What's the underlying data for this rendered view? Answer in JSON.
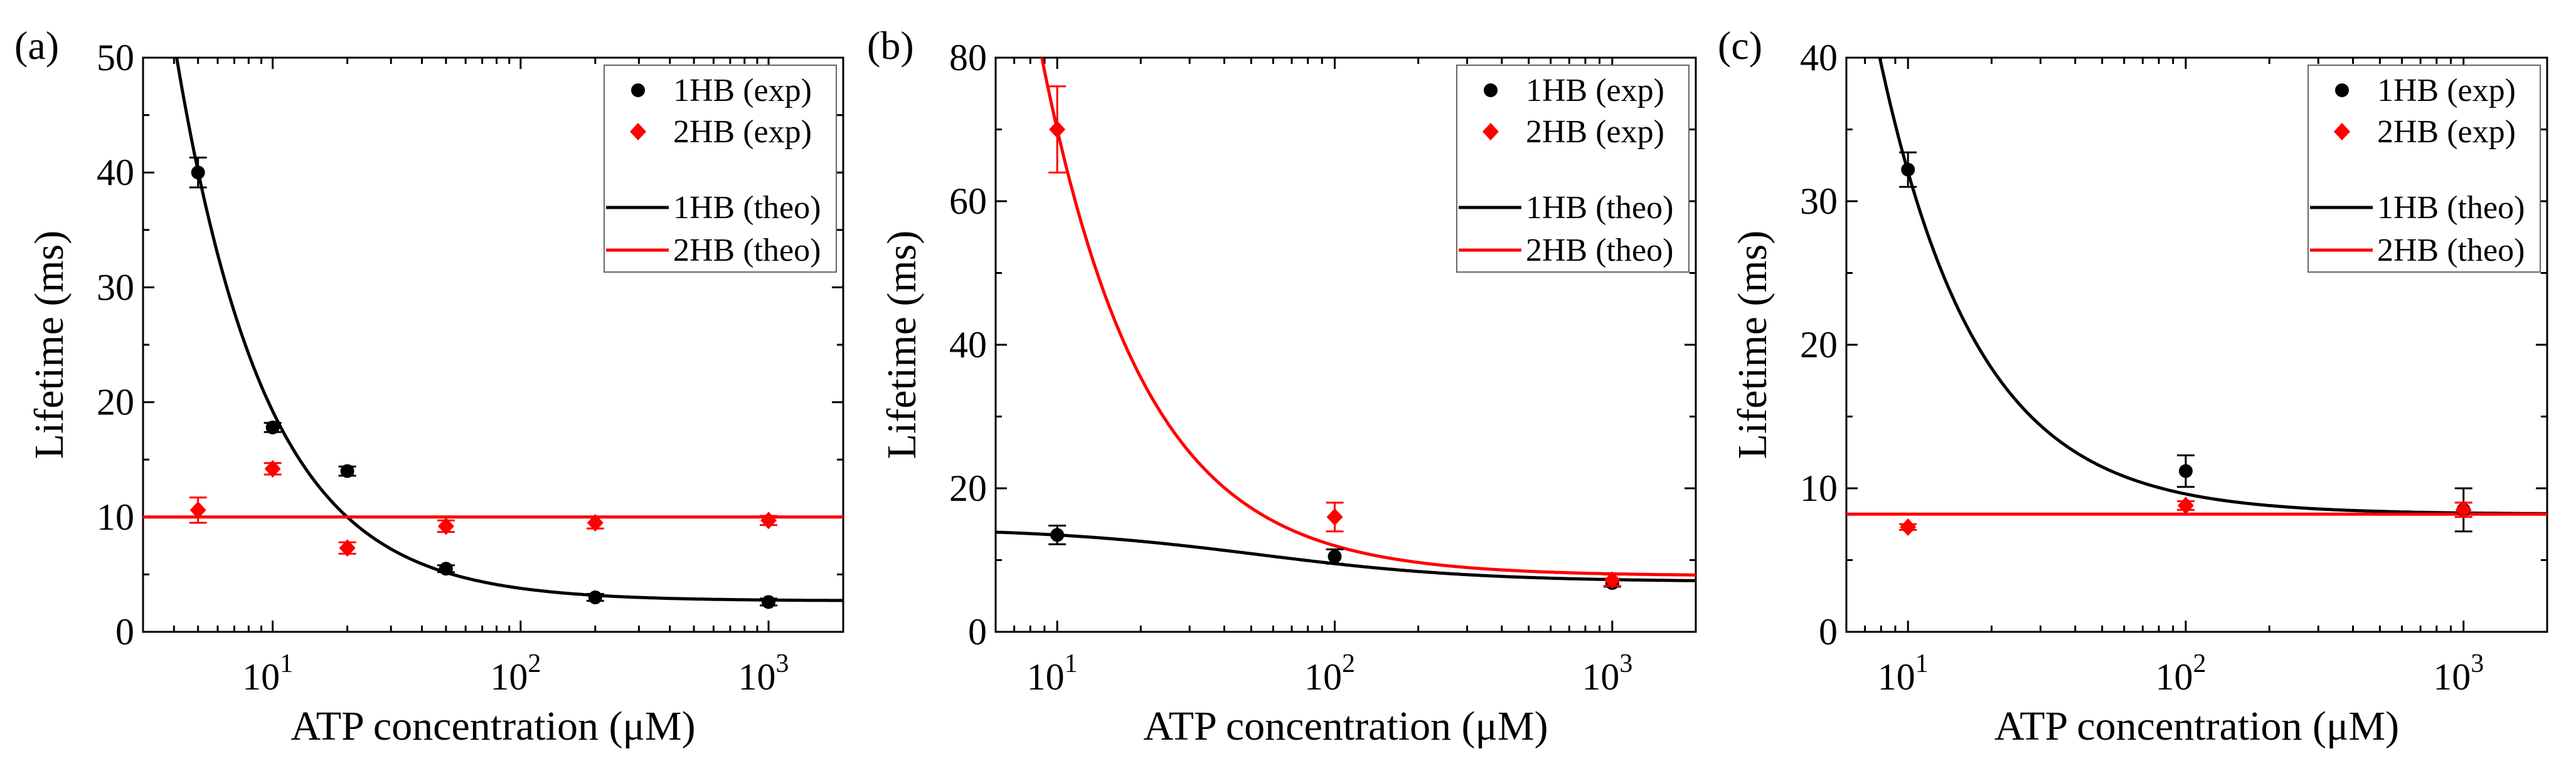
{
  "colors": {
    "series_1HB": "#000000",
    "series_2HB": "#ff0000"
  },
  "chart_data": [
    {
      "type": "scatter",
      "panel_label": "(a)",
      "xlabel": "ATP concentration (μM)",
      "ylabel": "Lifetime (ms)",
      "xscale": "log",
      "xlim": [
        3,
        2000
      ],
      "ylim": [
        0,
        50
      ],
      "yticks": [
        0,
        10,
        20,
        30,
        40,
        50
      ],
      "yminor": 5,
      "xticks": [
        {
          "value": 10,
          "base": "10",
          "exp": "1"
        },
        {
          "value": 100,
          "base": "10",
          "exp": "2"
        },
        {
          "value": 1000,
          "base": "10",
          "exp": "3"
        }
      ],
      "legend": {
        "placement": "top-right",
        "entries": [
          "1HB (exp)",
          "2HB (exp)",
          "1HB (theo)",
          "2HB (theo)"
        ]
      },
      "series": [
        {
          "name": "1HB (exp)",
          "kind": "points",
          "marker": "circle",
          "color": "#000000",
          "x": [
            5,
            10,
            20,
            50,
            200,
            1000
          ],
          "y": [
            40,
            17.8,
            14,
            5.5,
            3,
            2.6
          ],
          "err": [
            1.3,
            0.4,
            0.4,
            0.3,
            0.3,
            0.3
          ]
        },
        {
          "name": "2HB (exp)",
          "kind": "points",
          "marker": "diamond",
          "color": "#ff0000",
          "x": [
            5,
            10,
            20,
            50,
            200,
            1000
          ],
          "y": [
            10.6,
            14.2,
            7.3,
            9.2,
            9.5,
            9.7
          ],
          "err": [
            1.1,
            0.5,
            0.5,
            0.5,
            0.5,
            0.4
          ]
        },
        {
          "name": "1HB (theo)",
          "kind": "curve",
          "color": "#000000",
          "model": {
            "c": 2.7,
            "A": 250,
            "n": 1.18
          }
        },
        {
          "name": "2HB (theo)",
          "kind": "curve",
          "color": "#ff0000",
          "model": {
            "c": 10,
            "A": 0,
            "n": 1
          }
        }
      ]
    },
    {
      "type": "scatter",
      "panel_label": "(b)",
      "xlabel": "ATP concentration (μM)",
      "ylabel": "Lifetime (ms)",
      "xscale": "log",
      "xlim": [
        6,
        2000
      ],
      "ylim": [
        0,
        80
      ],
      "yticks": [
        0,
        20,
        40,
        60,
        80
      ],
      "yminor": 10,
      "xticks": [
        {
          "value": 10,
          "base": "10",
          "exp": "1"
        },
        {
          "value": 100,
          "base": "10",
          "exp": "2"
        },
        {
          "value": 1000,
          "base": "10",
          "exp": "3"
        }
      ],
      "legend": {
        "placement": "top-right",
        "entries": [
          "1HB (exp)",
          "2HB (exp)",
          "1HB (theo)",
          "2HB (theo)"
        ]
      },
      "series": [
        {
          "name": "1HB (exp)",
          "kind": "points",
          "marker": "circle",
          "color": "#000000",
          "x": [
            10,
            100,
            1000
          ],
          "y": [
            13.5,
            10.5,
            6.8
          ],
          "err": [
            1.3,
            1.0,
            0.5
          ]
        },
        {
          "name": "2HB (exp)",
          "kind": "points",
          "marker": "diamond",
          "color": "#ff0000",
          "x": [
            10,
            100,
            1000
          ],
          "y": [
            70,
            16,
            7.2
          ],
          "err": [
            6,
            2,
            0.8
          ]
        },
        {
          "name": "1HB (theo)",
          "kind": "curve",
          "color": "#000000",
          "model": {
            "c": 7,
            "S": 7.5,
            "K": 53.6,
            "n": 1.11,
            "form": "hill"
          }
        },
        {
          "name": "2HB (theo)",
          "kind": "curve",
          "color": "#ff0000",
          "model": {
            "c": 7.8,
            "A": 920,
            "n": 1.17
          }
        }
      ]
    },
    {
      "type": "scatter",
      "panel_label": "(c)",
      "xlabel": "ATP concentration (μM)",
      "ylabel": "Lifetime (ms)",
      "xscale": "log",
      "xlim": [
        6,
        2000
      ],
      "ylim": [
        0,
        40
      ],
      "yticks": [
        0,
        10,
        20,
        30,
        40
      ],
      "yminor": 5,
      "xticks": [
        {
          "value": 10,
          "base": "10",
          "exp": "1"
        },
        {
          "value": 100,
          "base": "10",
          "exp": "2"
        },
        {
          "value": 1000,
          "base": "10",
          "exp": "3"
        }
      ],
      "legend": {
        "placement": "top-right",
        "entries": [
          "1HB (exp)",
          "2HB (exp)",
          "1HB (theo)",
          "2HB (theo)"
        ]
      },
      "series": [
        {
          "name": "1HB (exp)",
          "kind": "points",
          "marker": "circle",
          "color": "#000000",
          "x": [
            10,
            100,
            1000
          ],
          "y": [
            32.2,
            11.2,
            8.5
          ],
          "err": [
            1.2,
            1.1,
            1.5
          ]
        },
        {
          "name": "2HB (exp)",
          "kind": "points",
          "marker": "diamond",
          "color": "#ff0000",
          "x": [
            10,
            100,
            1000
          ],
          "y": [
            7.3,
            8.8,
            8.5
          ],
          "err": [
            0.2,
            0.3,
            0.5
          ]
        },
        {
          "name": "1HB (theo)",
          "kind": "curve",
          "color": "#000000",
          "model": {
            "c": 8.2,
            "A": 405,
            "n": 1.23
          }
        },
        {
          "name": "2HB (theo)",
          "kind": "curve",
          "color": "#ff0000",
          "model": {
            "c": 8.2,
            "A": 0,
            "n": 1
          }
        }
      ]
    }
  ]
}
